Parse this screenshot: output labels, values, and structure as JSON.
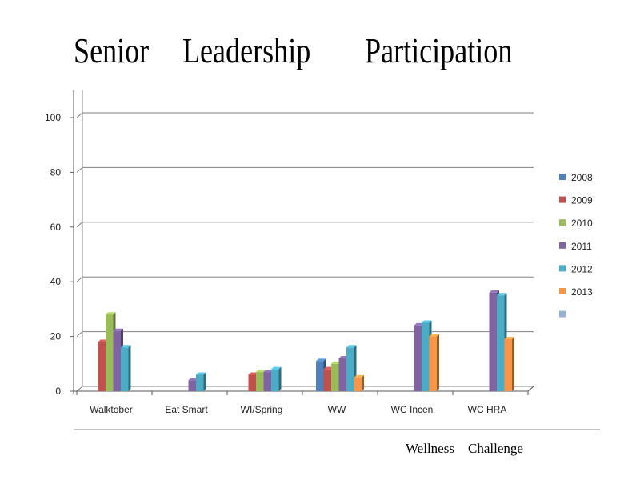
{
  "title": {
    "words": [
      "Senior",
      "Leadership",
      "Participation"
    ]
  },
  "footer": {
    "words": [
      "Wellness",
      "Challenge"
    ]
  },
  "chart_data": {
    "type": "bar",
    "title": "Senior Leadership Participation",
    "categories": [
      "Walktober",
      "Eat Smart",
      "WI/Spring",
      "WW",
      "WC Incen",
      "WC HRA"
    ],
    "ylim": [
      0,
      100
    ],
    "yticks": [
      0,
      20,
      40,
      60,
      80,
      100
    ],
    "grid": true,
    "legend_position": "right",
    "series": [
      {
        "name": "2008",
        "color": "#4F81BD",
        "values": [
          null,
          null,
          null,
          11,
          null,
          null
        ]
      },
      {
        "name": "2009",
        "color": "#C0504D",
        "values": [
          18,
          null,
          6,
          8,
          null,
          null
        ]
      },
      {
        "name": "2010",
        "color": "#9BBB59",
        "values": [
          28,
          null,
          7,
          10,
          null,
          null
        ]
      },
      {
        "name": "2011",
        "color": "#8064A2",
        "values": [
          22,
          4,
          7,
          12,
          24,
          36
        ]
      },
      {
        "name": "2012",
        "color": "#4BACC6",
        "values": [
          16,
          6,
          8,
          16,
          25,
          35
        ]
      },
      {
        "name": "2013",
        "color": "#F79646",
        "values": [
          null,
          null,
          null,
          5,
          20,
          19
        ]
      },
      {
        "name": "",
        "color": "#95B3D7",
        "values": [
          null,
          null,
          null,
          null,
          null,
          null
        ]
      }
    ]
  }
}
